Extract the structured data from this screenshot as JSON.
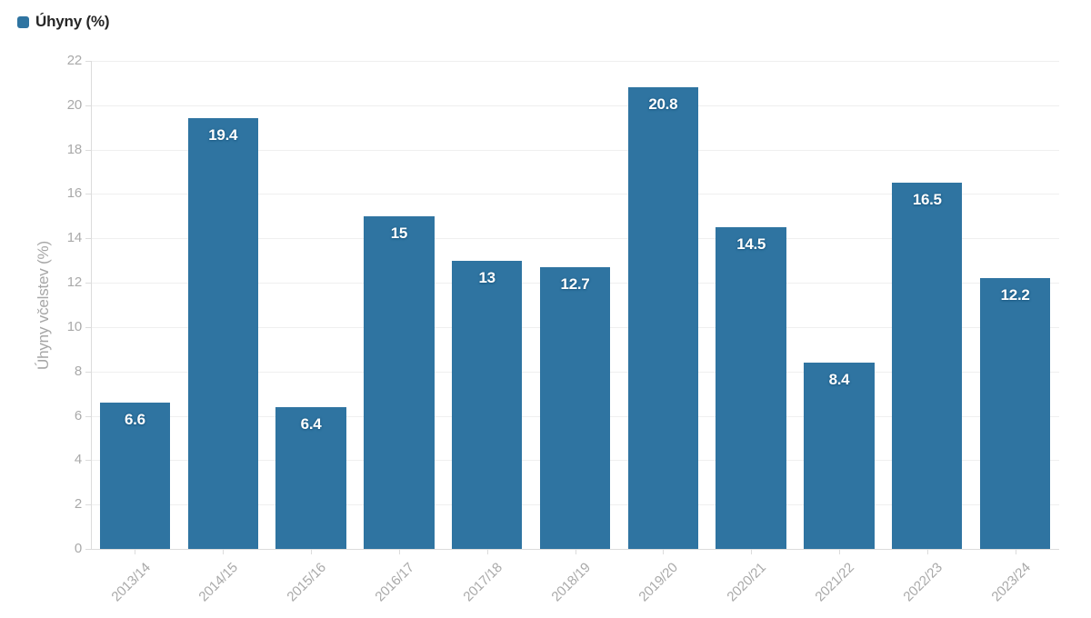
{
  "chart_data": {
    "type": "bar",
    "categories": [
      "2013/14",
      "2014/15",
      "2015/16",
      "2016/17",
      "2017/18",
      "2018/19",
      "2019/20",
      "2020/21",
      "2021/22",
      "2022/23",
      "2023/24"
    ],
    "series": [
      {
        "name": "Úhyny (%)",
        "values": [
          6.6,
          19.4,
          6.4,
          15,
          13,
          12.7,
          20.8,
          14.5,
          8.4,
          16.5,
          12.2
        ]
      }
    ],
    "title": "",
    "xlabel": "",
    "ylabel": "Úhyny včelstev (%)",
    "ylim": [
      0,
      22
    ],
    "ytick_step": 2,
    "grid": "on",
    "legend_position": "top-left",
    "bar_labels_visible": true,
    "colors": {
      "bar": "#2f74a1",
      "bar_label_text": "#ffffff",
      "gridline": "#efefef",
      "axis_line": "#dcdcdc",
      "tick_text": "#a9a9a9",
      "legend_text": "#262626"
    }
  }
}
